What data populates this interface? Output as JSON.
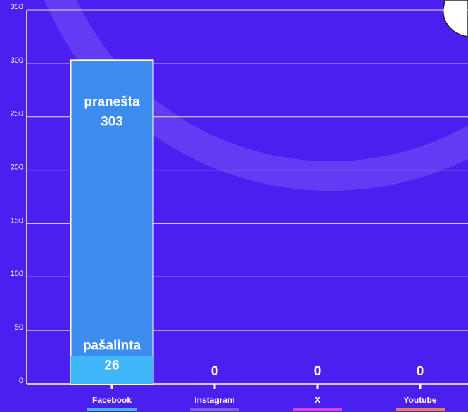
{
  "chart_data": {
    "type": "bar",
    "categories": [
      "Facebook",
      "Instagram",
      "X",
      "Youtube"
    ],
    "category_colors": [
      "#3fb6f7",
      "#7a5fe0",
      "#e23ee8",
      "#f07a4a"
    ],
    "series": [
      {
        "name": "pranešta",
        "color": "#3d8cf0",
        "values": [
          303,
          0,
          0,
          0
        ]
      },
      {
        "name": "pašalinta",
        "color": "#3fb6f7",
        "values": [
          26,
          0,
          0,
          0
        ]
      }
    ],
    "ylim": [
      0,
      350
    ],
    "yticks": [
      0,
      50,
      100,
      150,
      200,
      250,
      300,
      350
    ],
    "grid": true
  }
}
